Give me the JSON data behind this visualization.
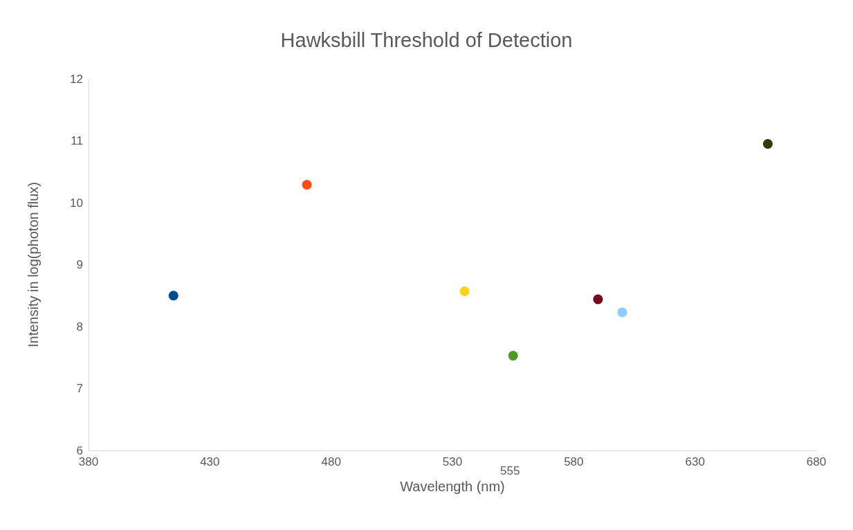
{
  "chart_data": {
    "type": "scatter",
    "title": "Hawksbill Threshold of Detection",
    "xlabel": "Wavelength (nm)",
    "ylabel": "Intensity in log(photon flux)",
    "x": [
      415,
      470,
      535,
      555,
      590,
      600,
      660
    ],
    "values": [
      8.5,
      10.29,
      8.57,
      7.53,
      8.44,
      8.23,
      10.95
    ],
    "colors": [
      "#004c8c",
      "#ff4b12",
      "#ffd21e",
      "#4e9a22",
      "#7a0020",
      "#8ccdff",
      "#2a3d0a"
    ],
    "xlim": [
      380,
      680
    ],
    "xticks": [
      380,
      430,
      480,
      530,
      580,
      630,
      680
    ],
    "ylim": [
      6,
      12
    ],
    "yticks": [
      6,
      7,
      8,
      9,
      10,
      11,
      12
    ],
    "grid": false,
    "marker": "circle",
    "annotations": [
      "555"
    ]
  }
}
